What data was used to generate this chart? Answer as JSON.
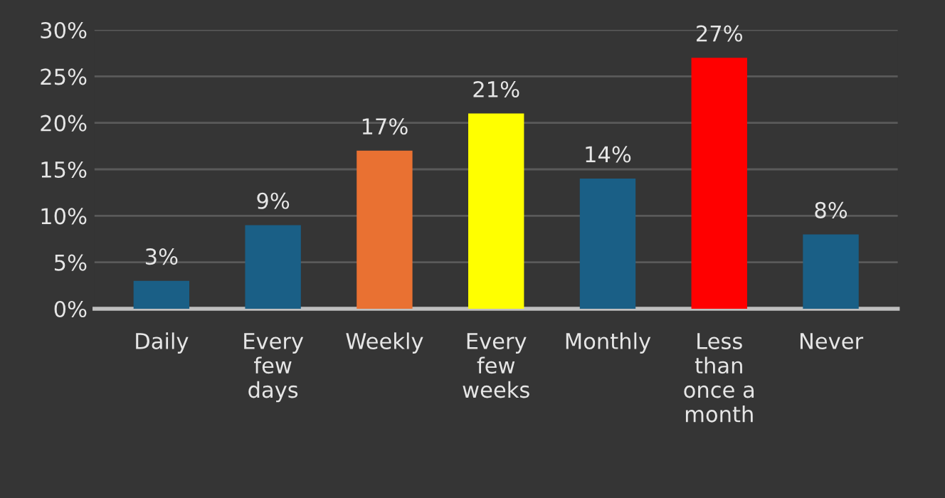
{
  "chart_data": {
    "type": "bar",
    "categories": [
      "Daily",
      "Every\nfew\ndays",
      "Weekly",
      "Every\nfew\nweeks",
      "Monthly",
      "Less\nthan\nonce a\nmonth",
      "Never"
    ],
    "values": [
      3,
      9,
      17,
      21,
      14,
      27,
      8
    ],
    "colors": [
      "#1a5f86",
      "#1a5f86",
      "#e97132",
      "#ffff00",
      "#1a5f86",
      "#ff0000",
      "#1a5f86"
    ],
    "value_labels": [
      "3%",
      "9%",
      "17%",
      "21%",
      "14%",
      "27%",
      "8%"
    ],
    "ylim": [
      0,
      30
    ],
    "yticks": [
      {
        "value": 0,
        "label": "0%"
      },
      {
        "value": 5,
        "label": "5%"
      },
      {
        "value": 10,
        "label": "10%"
      },
      {
        "value": 15,
        "label": "15%"
      },
      {
        "value": 20,
        "label": "20%"
      },
      {
        "value": 25,
        "label": "25%"
      },
      {
        "value": 30,
        "label": "30%"
      }
    ],
    "grid": "y"
  }
}
